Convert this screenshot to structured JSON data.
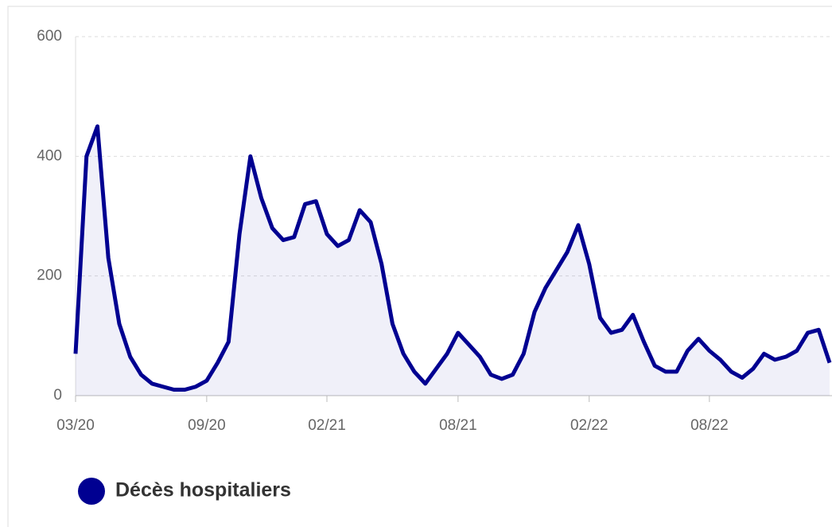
{
  "chart_data": {
    "type": "line",
    "categories": [
      "03/20",
      null,
      null,
      null,
      null,
      null,
      null,
      null,
      null,
      null,
      null,
      null,
      "09/20",
      null,
      null,
      null,
      null,
      null,
      null,
      null,
      null,
      null,
      null,
      "02/21",
      null,
      null,
      null,
      null,
      null,
      null,
      null,
      null,
      null,
      null,
      null,
      "08/21",
      null,
      null,
      null,
      null,
      null,
      null,
      null,
      null,
      null,
      null,
      null,
      "02/22",
      null,
      null,
      null,
      null,
      null,
      null,
      null,
      null,
      null,
      null,
      "08/22",
      null,
      null,
      null,
      null,
      null,
      null,
      null,
      null,
      null,
      null,
      null
    ],
    "series": [
      {
        "name": "Décès hospitaliers",
        "color": "#000091",
        "values": [
          70,
          400,
          450,
          230,
          120,
          65,
          35,
          20,
          15,
          10,
          10,
          15,
          25,
          55,
          90,
          270,
          400,
          330,
          280,
          260,
          265,
          320,
          325,
          270,
          250,
          260,
          310,
          290,
          220,
          120,
          70,
          40,
          20,
          45,
          70,
          105,
          85,
          65,
          35,
          28,
          35,
          70,
          140,
          180,
          210,
          240,
          285,
          220,
          130,
          105,
          110,
          135,
          90,
          50,
          40,
          40,
          75,
          95,
          75,
          60,
          40,
          30,
          45,
          70,
          60,
          65,
          75,
          105,
          110,
          55
        ]
      }
    ],
    "ylim": [
      0,
      600
    ],
    "yticks": [
      0,
      200,
      400,
      600
    ],
    "grid": true
  }
}
